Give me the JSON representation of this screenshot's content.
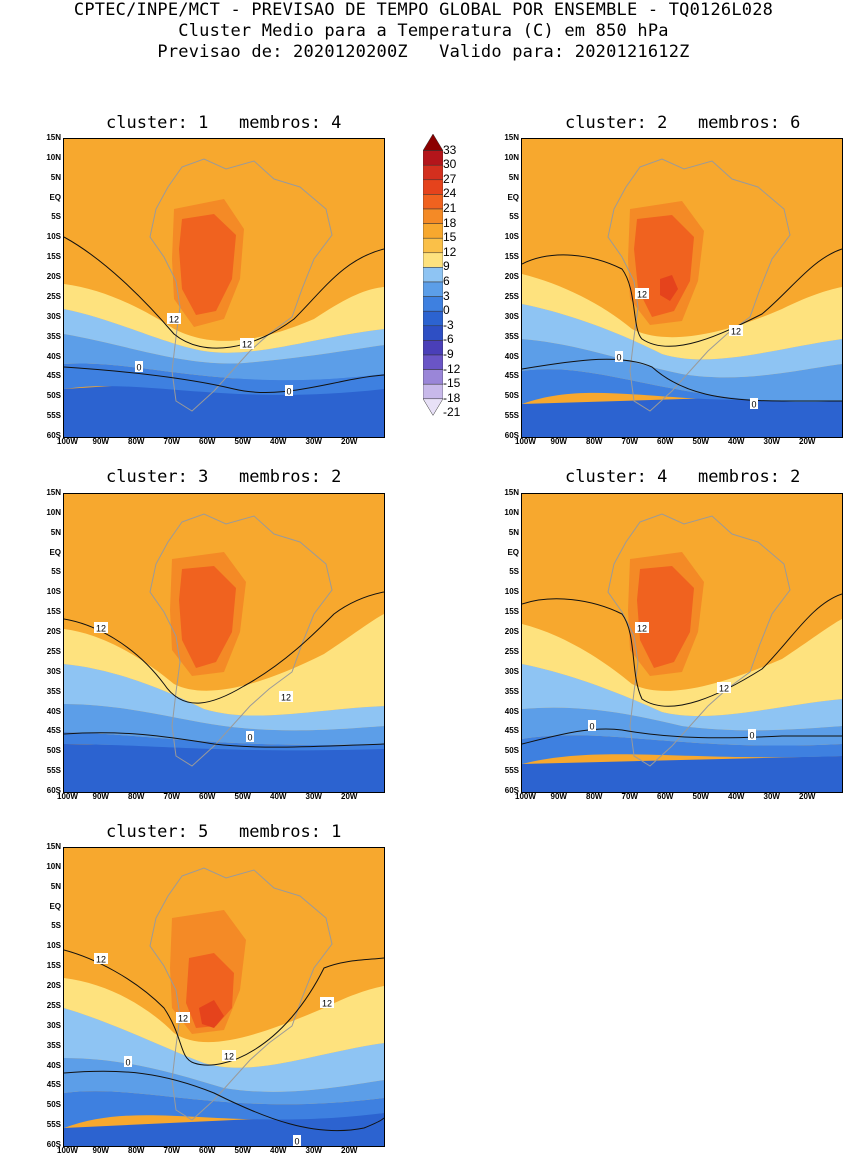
{
  "header": {
    "line1": "CPTEC/INPE/MCT - PREVISAO DE TEMPO GLOBAL POR ENSEMBLE - TQ0126L028",
    "line2": "Cluster Medio para a Temperatura (C) em 850 hPa",
    "line3": "Previsao de: 2020120200Z   Valido para: 2020121612Z"
  },
  "lat_labels": [
    "15N",
    "10N",
    "5N",
    "EQ",
    "5S",
    "10S",
    "15S",
    "20S",
    "25S",
    "30S",
    "35S",
    "40S",
    "45S",
    "50S",
    "55S",
    "60S"
  ],
  "lon_labels": [
    "100W",
    "90W",
    "80W",
    "70W",
    "60W",
    "50W",
    "40W",
    "30W",
    "20W"
  ],
  "colorbar": {
    "levels": [
      "33",
      "30",
      "27",
      "24",
      "21",
      "18",
      "15",
      "12",
      "9",
      "6",
      "3",
      "0",
      "-3",
      "-6",
      "-9",
      "-12",
      "-15",
      "-18",
      "-21"
    ],
    "colors": [
      "#8B0000",
      "#B4151B",
      "#D32F1E",
      "#E5431C",
      "#F0621F",
      "#F48A26",
      "#F7A82E",
      "#FAC048",
      "#FEE27E",
      "#8EC4F3",
      "#5C9EE8",
      "#3E80E0",
      "#2C63D0",
      "#2E4FC4",
      "#4A3FB8",
      "#6A55C6",
      "#9A86D8",
      "#C8B9EA",
      "#E8E1F7"
    ]
  },
  "panels": [
    {
      "title": "cluster: 1   membros: 4",
      "c12_labels": [
        "12",
        "12"
      ],
      "c0_labels": [
        "0",
        "0"
      ]
    },
    {
      "title": "cluster: 2   membros: 6",
      "c12_labels": [
        "12",
        "12"
      ],
      "c0_labels": [
        "0",
        "0"
      ]
    },
    {
      "title": "cluster: 3   membros: 2",
      "c12_labels": [
        "12",
        "12"
      ],
      "c0_labels": [
        "0"
      ]
    },
    {
      "title": "cluster: 4   membros: 2",
      "c12_labels": [
        "12",
        "12"
      ],
      "c0_labels": [
        "0",
        "0"
      ]
    },
    {
      "title": "cluster: 5   membros: 1",
      "c12_labels": [
        "12",
        "12",
        "12",
        "12"
      ],
      "c0_labels": [
        "0",
        "0"
      ]
    }
  ]
}
